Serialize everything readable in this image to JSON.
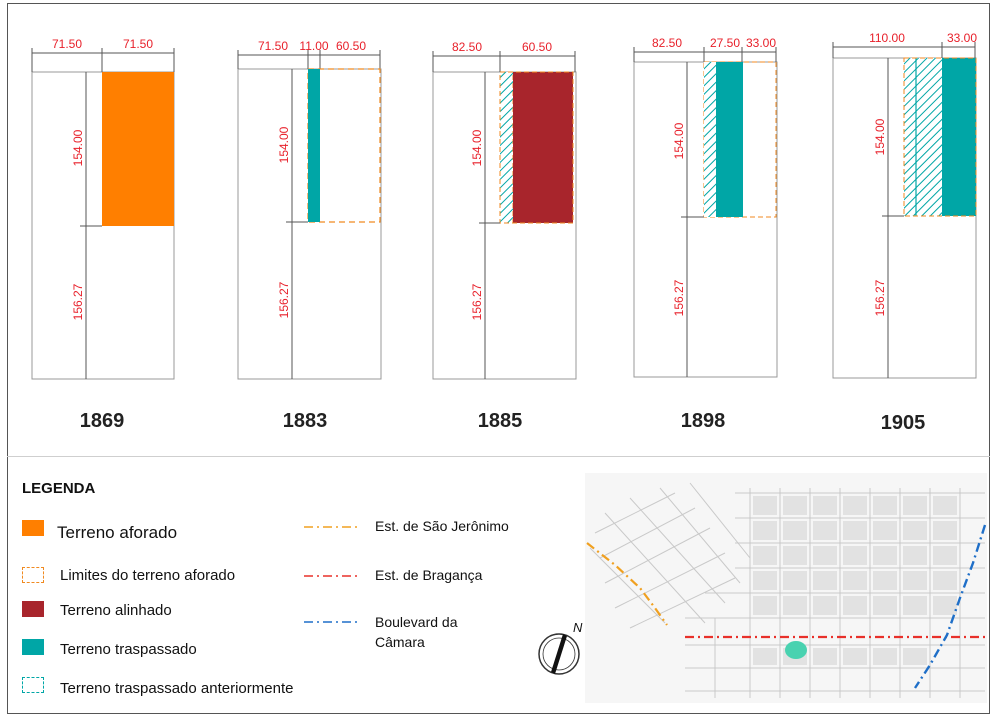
{
  "colors": {
    "aforado": "#ff7f00",
    "alinhado": "#a8252c",
    "traspassado": "#00a6a6",
    "sao_jeronimo": "#f0a020",
    "braganca": "#e8302a",
    "boulevard": "#1f6fc8",
    "dimension_text": "#e8202a"
  },
  "panels": [
    {
      "year": "1869",
      "top_dims": [
        "71.50",
        "71.50"
      ],
      "side_dims": [
        "154.00",
        "156.27"
      ]
    },
    {
      "year": "1883",
      "top_dims": [
        "71.50",
        "11.00",
        "60.50"
      ],
      "side_dims": [
        "154.00",
        "156.27"
      ]
    },
    {
      "year": "1885",
      "top_dims": [
        "82.50",
        "60.50"
      ],
      "side_dims": [
        "154.00",
        "156.27"
      ]
    },
    {
      "year": "1898",
      "top_dims": [
        "82.50",
        "27.50",
        "33.00"
      ],
      "side_dims": [
        "154.00",
        "156.27"
      ]
    },
    {
      "year": "1905",
      "top_dims": [
        "110.00",
        "33.00"
      ],
      "side_dims": [
        "154.00",
        "156.27"
      ]
    }
  ],
  "legend": {
    "title": "LEGENDA",
    "items": [
      {
        "label": "Terreno aforado",
        "icon": "solid-orange-square"
      },
      {
        "label": "Limites do terreno aforado",
        "icon": "dashed-orange-square"
      },
      {
        "label": "Terreno alinhado",
        "icon": "solid-red-square"
      },
      {
        "label": "Terreno traspassado",
        "icon": "solid-teal-square"
      },
      {
        "label": "Terreno traspassado anteriormente",
        "icon": "dashed-teal-square"
      }
    ],
    "lines": [
      {
        "label": "Est. de São Jerônimo",
        "style": "dash-dot-orange"
      },
      {
        "label": "Est. de Bragança",
        "style": "dash-dot-red"
      },
      {
        "label": "Boulevard da Câmara",
        "style": "dash-dot-blue"
      }
    ]
  },
  "map": {
    "compass_label": "N"
  }
}
